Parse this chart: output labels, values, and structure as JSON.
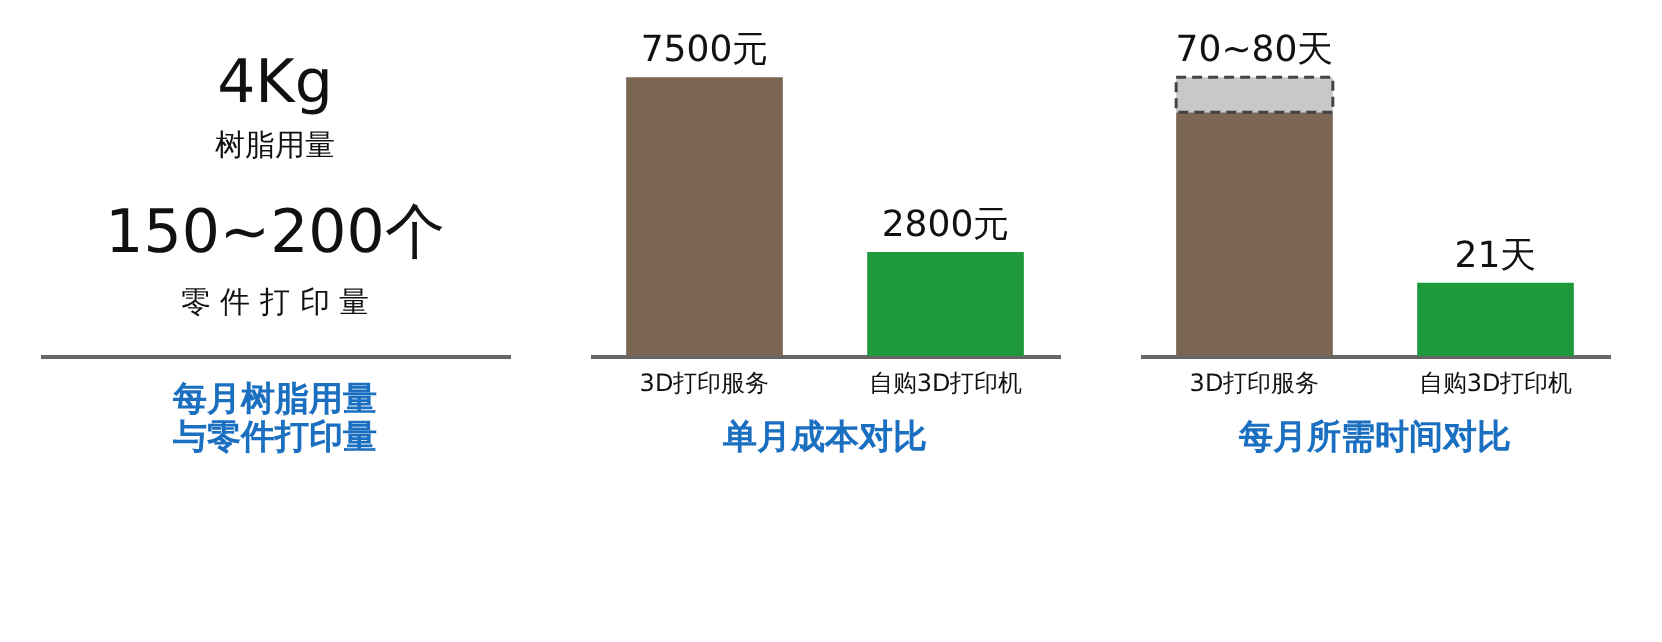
{
  "chart_data": [
    {
      "type": "other",
      "title": "每月树脂用量与零件打印量",
      "annotations": [
        "4Kg",
        "树脂用量",
        "150~200个",
        "零 件 打 印 量"
      ]
    },
    {
      "type": "bar",
      "title": "单月成本对比",
      "categories": [
        "3D打印服务",
        "自购3D打印机"
      ],
      "values": [
        7500,
        2800
      ],
      "colors": [
        "#7a6652",
        "#1e9a3c"
      ],
      "value_labels": [
        "7500元",
        "2800元"
      ]
    },
    {
      "type": "bar",
      "title": "每月所需时间对比",
      "categories": [
        "3D打印服务",
        "自购3D打印机"
      ],
      "stacked": true,
      "annotations": [
        {
          "text": "70~80天",
          "x": "3D打印服务",
          "y": 80
        }
      ],
      "series": [
        {
          "colors": [
            "#7a6652",
            "#1e9a3c"
          ],
          "values": [
            70,
            21
          ],
          "value_labels": [
            null,
            "21天"
          ]
        },
        {
          "color": "#c8c8c8",
          "values": [
            10,
            null
          ],
          "line_style": "dashed"
        }
      ]
    }
  ]
}
